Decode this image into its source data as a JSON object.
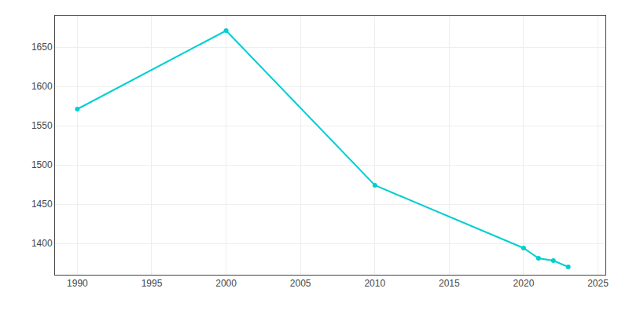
{
  "chart_data": {
    "type": "line",
    "x": [
      1990,
      2000,
      2010,
      2020,
      2021,
      2022,
      2023
    ],
    "values": [
      1571,
      1671,
      1474,
      1394,
      1381,
      1378,
      1370
    ],
    "color": "#00CED1",
    "marker": "circle",
    "xlim": [
      1988.5,
      2025.5
    ],
    "ylim": [
      1360,
      1690
    ],
    "xticks": [
      1990,
      1995,
      2000,
      2005,
      2010,
      2015,
      2020,
      2025
    ],
    "yticks": [
      1400,
      1450,
      1500,
      1550,
      1600,
      1650
    ],
    "grid": true
  }
}
